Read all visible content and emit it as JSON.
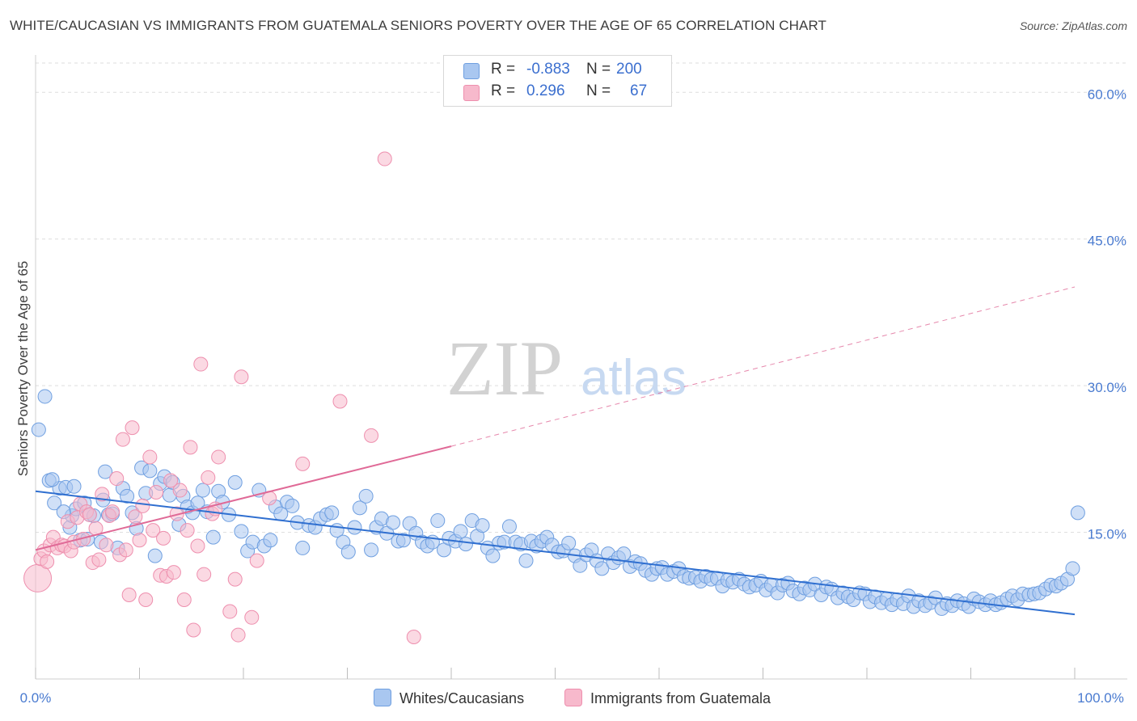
{
  "title": "WHITE/CAUCASIAN VS IMMIGRANTS FROM GUATEMALA SENIORS POVERTY OVER THE AGE OF 65 CORRELATION CHART",
  "source": "Source: ZipAtlas.com",
  "watermark": {
    "zip": "ZIP",
    "atlas": "atlas"
  },
  "legend": {
    "rows": [
      {
        "r_label": "R =",
        "r_value": "-0.883",
        "n_label": "N =",
        "n_value": "200"
      },
      {
        "r_label": "R =",
        "r_value": "0.296",
        "n_label": "N =",
        "n_value": "67"
      }
    ]
  },
  "bottom_legend": {
    "series1": "Whites/Caucasians",
    "series2": "Immigrants from Guatemala"
  },
  "colors": {
    "series1_fill": "#a9c7f0",
    "series1_stroke": "#6f9fe0",
    "series1_line": "#2f6fd0",
    "series2_fill": "#f7b9cc",
    "series2_stroke": "#ee8fae",
    "series2_line": "#e06a97",
    "axis_label": "#4a7bd0",
    "grid": "#dddddd"
  },
  "chart_data": {
    "type": "scatter",
    "title": "WHITE/CAUCASIAN VS IMMIGRANTS FROM GUATEMALA SENIORS POVERTY OVER THE AGE OF 65 CORRELATION CHART",
    "xlabel": "",
    "ylabel": "Seniors Poverty Over the Age of 65",
    "xlim": [
      0,
      100
    ],
    "ylim": [
      0,
      63
    ],
    "x_tick_labels": [
      "0.0%",
      "100.0%"
    ],
    "y_ticks": [
      15,
      30,
      45,
      60
    ],
    "y_tick_labels": [
      "15.0%",
      "30.0%",
      "45.0%",
      "60.0%"
    ],
    "grid": "horizontal dashed",
    "legend_position": "top-center",
    "series": [
      {
        "name": "Whites/Caucasians",
        "trend": {
          "x": [
            0,
            100
          ],
          "y": [
            19.2,
            6.6
          ],
          "style": "solid"
        },
        "points": [
          [
            0.3,
            25.5
          ],
          [
            0.9,
            28.9
          ],
          [
            1.3,
            20.3
          ],
          [
            1.8,
            18.0
          ],
          [
            2.3,
            19.5
          ],
          [
            2.9,
            19.6
          ],
          [
            3.3,
            15.5
          ],
          [
            3.5,
            16.7
          ],
          [
            3.9,
            17.4
          ],
          [
            4.3,
            14.2
          ],
          [
            4.7,
            18.0
          ],
          [
            5.2,
            16.8
          ],
          [
            5.6,
            16.7
          ],
          [
            6.3,
            14.0
          ],
          [
            6.7,
            21.2
          ],
          [
            7.0,
            16.8
          ],
          [
            7.4,
            16.9
          ],
          [
            7.9,
            13.4
          ],
          [
            8.4,
            19.5
          ],
          [
            8.8,
            18.7
          ],
          [
            9.3,
            17.0
          ],
          [
            9.7,
            15.4
          ],
          [
            10.2,
            21.6
          ],
          [
            10.6,
            19.0
          ],
          [
            11.0,
            21.3
          ],
          [
            11.5,
            12.6
          ],
          [
            12.0,
            20.0
          ],
          [
            12.4,
            20.7
          ],
          [
            12.9,
            18.8
          ],
          [
            13.2,
            20.1
          ],
          [
            13.8,
            15.8
          ],
          [
            14.2,
            18.7
          ],
          [
            14.6,
            17.6
          ],
          [
            15.1,
            17.0
          ],
          [
            15.6,
            18.0
          ],
          [
            16.1,
            19.3
          ],
          [
            16.5,
            17.1
          ],
          [
            17.1,
            14.5
          ],
          [
            17.6,
            19.2
          ],
          [
            18.0,
            18.1
          ],
          [
            18.6,
            16.8
          ],
          [
            19.2,
            20.1
          ],
          [
            19.8,
            15.1
          ],
          [
            20.4,
            13.1
          ],
          [
            20.9,
            14.0
          ],
          [
            21.5,
            19.3
          ],
          [
            22.0,
            13.6
          ],
          [
            22.6,
            14.2
          ],
          [
            23.1,
            17.6
          ],
          [
            23.6,
            16.9
          ],
          [
            24.2,
            18.1
          ],
          [
            24.7,
            17.7
          ],
          [
            25.2,
            16.0
          ],
          [
            25.7,
            13.4
          ],
          [
            26.3,
            15.7
          ],
          [
            26.9,
            15.5
          ],
          [
            27.4,
            16.4
          ],
          [
            28.0,
            16.8
          ],
          [
            28.5,
            17.0
          ],
          [
            29.0,
            15.2
          ],
          [
            29.6,
            14.0
          ],
          [
            30.1,
            13.0
          ],
          [
            30.7,
            15.5
          ],
          [
            31.2,
            17.5
          ],
          [
            31.8,
            18.7
          ],
          [
            32.3,
            13.2
          ],
          [
            32.8,
            15.5
          ],
          [
            33.3,
            16.4
          ],
          [
            33.8,
            14.9
          ],
          [
            34.4,
            16.0
          ],
          [
            34.9,
            14.1
          ],
          [
            35.4,
            14.2
          ],
          [
            36.0,
            15.9
          ],
          [
            36.6,
            14.9
          ],
          [
            37.2,
            14.0
          ],
          [
            37.7,
            13.6
          ],
          [
            38.2,
            14.0
          ],
          [
            38.7,
            16.2
          ],
          [
            39.3,
            13.2
          ],
          [
            39.8,
            14.4
          ],
          [
            40.4,
            14.1
          ],
          [
            40.9,
            15.1
          ],
          [
            41.4,
            13.8
          ],
          [
            42.0,
            16.2
          ],
          [
            42.5,
            14.6
          ],
          [
            43.0,
            15.7
          ],
          [
            43.5,
            13.4
          ],
          [
            44.0,
            12.6
          ],
          [
            44.6,
            13.9
          ],
          [
            45.1,
            14.0
          ],
          [
            45.6,
            15.6
          ],
          [
            46.2,
            14.0
          ],
          [
            46.7,
            13.8
          ],
          [
            47.2,
            12.1
          ],
          [
            47.7,
            14.1
          ],
          [
            48.2,
            13.6
          ],
          [
            48.7,
            14.1
          ],
          [
            49.2,
            14.5
          ],
          [
            49.7,
            13.7
          ],
          [
            50.3,
            13.0
          ],
          [
            50.8,
            13.1
          ],
          [
            51.3,
            13.9
          ],
          [
            51.9,
            12.6
          ],
          [
            52.4,
            11.6
          ],
          [
            53.0,
            12.7
          ],
          [
            53.5,
            13.2
          ],
          [
            54.0,
            12.1
          ],
          [
            54.5,
            11.3
          ],
          [
            55.1,
            12.8
          ],
          [
            55.6,
            11.9
          ],
          [
            56.1,
            12.4
          ],
          [
            56.6,
            12.8
          ],
          [
            57.2,
            11.5
          ],
          [
            57.7,
            12.0
          ],
          [
            58.2,
            11.8
          ],
          [
            58.7,
            11.1
          ],
          [
            59.3,
            10.7
          ],
          [
            59.8,
            11.3
          ],
          [
            60.3,
            11.4
          ],
          [
            60.8,
            10.7
          ],
          [
            61.4,
            11.0
          ],
          [
            61.9,
            11.3
          ],
          [
            62.4,
            10.5
          ],
          [
            62.9,
            10.3
          ],
          [
            63.5,
            10.4
          ],
          [
            64.0,
            10.0
          ],
          [
            64.5,
            10.5
          ],
          [
            65.0,
            10.2
          ],
          [
            65.6,
            10.3
          ],
          [
            66.1,
            9.5
          ],
          [
            66.6,
            10.1
          ],
          [
            67.1,
            9.9
          ],
          [
            67.7,
            10.2
          ],
          [
            68.2,
            9.7
          ],
          [
            68.7,
            9.4
          ],
          [
            69.3,
            9.6
          ],
          [
            69.8,
            10.0
          ],
          [
            70.3,
            9.1
          ],
          [
            70.8,
            9.6
          ],
          [
            71.4,
            8.8
          ],
          [
            71.9,
            9.6
          ],
          [
            72.4,
            9.8
          ],
          [
            72.9,
            9.0
          ],
          [
            73.5,
            8.7
          ],
          [
            74.0,
            9.3
          ],
          [
            74.5,
            9.1
          ],
          [
            75.0,
            9.7
          ],
          [
            75.6,
            8.6
          ],
          [
            76.1,
            9.4
          ],
          [
            76.6,
            9.2
          ],
          [
            77.2,
            8.3
          ],
          [
            77.7,
            8.8
          ],
          [
            78.2,
            8.4
          ],
          [
            78.7,
            8.1
          ],
          [
            79.3,
            8.8
          ],
          [
            79.8,
            8.7
          ],
          [
            80.3,
            7.9
          ],
          [
            80.8,
            8.4
          ],
          [
            81.4,
            7.8
          ],
          [
            81.9,
            8.2
          ],
          [
            82.4,
            7.6
          ],
          [
            82.9,
            8.1
          ],
          [
            83.5,
            7.7
          ],
          [
            84.0,
            8.5
          ],
          [
            84.5,
            7.4
          ],
          [
            85.0,
            8.0
          ],
          [
            85.6,
            7.5
          ],
          [
            86.1,
            7.8
          ],
          [
            86.6,
            8.3
          ],
          [
            87.2,
            7.2
          ],
          [
            87.7,
            7.7
          ],
          [
            88.2,
            7.5
          ],
          [
            88.7,
            8.0
          ],
          [
            89.3,
            7.7
          ],
          [
            89.8,
            7.4
          ],
          [
            90.3,
            8.2
          ],
          [
            90.8,
            7.9
          ],
          [
            91.4,
            7.6
          ],
          [
            91.9,
            8.0
          ],
          [
            92.4,
            7.6
          ],
          [
            92.9,
            7.8
          ],
          [
            93.5,
            8.2
          ],
          [
            94.0,
            8.5
          ],
          [
            94.5,
            8.1
          ],
          [
            95.0,
            8.7
          ],
          [
            95.6,
            8.6
          ],
          [
            96.1,
            8.7
          ],
          [
            96.6,
            8.8
          ],
          [
            97.2,
            9.2
          ],
          [
            97.7,
            9.6
          ],
          [
            98.2,
            9.5
          ],
          [
            98.7,
            9.8
          ],
          [
            99.3,
            10.2
          ],
          [
            99.8,
            11.3
          ],
          [
            100.3,
            17.0
          ],
          [
            1.6,
            20.4
          ],
          [
            2.7,
            17.1
          ],
          [
            3.7,
            19.7
          ],
          [
            5.0,
            14.3
          ],
          [
            6.5,
            18.3
          ]
        ]
      },
      {
        "name": "Immigrants from Guatemala",
        "trend": {
          "x": [
            0,
            40,
            100
          ],
          "y": [
            13.2,
            23.8,
            40.1
          ],
          "style": "solid-then-dashed",
          "solid_until_x": 40
        },
        "points": [
          [
            0.2,
            10.3
          ],
          [
            0.5,
            12.3
          ],
          [
            0.8,
            13.1
          ],
          [
            1.1,
            12.0
          ],
          [
            1.4,
            13.7
          ],
          [
            1.7,
            14.5
          ],
          [
            2.1,
            13.4
          ],
          [
            2.5,
            13.7
          ],
          [
            2.8,
            13.6
          ],
          [
            3.1,
            16.1
          ],
          [
            3.4,
            13.1
          ],
          [
            3.7,
            14.0
          ],
          [
            4.0,
            16.5
          ],
          [
            4.3,
            17.9
          ],
          [
            4.6,
            14.3
          ],
          [
            4.9,
            17.1
          ],
          [
            5.2,
            16.8
          ],
          [
            5.5,
            11.9
          ],
          [
            5.8,
            15.4
          ],
          [
            6.1,
            12.2
          ],
          [
            6.4,
            18.9
          ],
          [
            6.8,
            13.7
          ],
          [
            7.1,
            16.7
          ],
          [
            7.4,
            17.1
          ],
          [
            7.8,
            20.5
          ],
          [
            8.1,
            12.7
          ],
          [
            8.4,
            24.5
          ],
          [
            8.7,
            13.2
          ],
          [
            9.0,
            8.6
          ],
          [
            9.3,
            25.7
          ],
          [
            9.6,
            16.6
          ],
          [
            10.0,
            14.2
          ],
          [
            10.3,
            17.7
          ],
          [
            10.6,
            8.1
          ],
          [
            11.0,
            22.7
          ],
          [
            11.3,
            15.2
          ],
          [
            11.6,
            19.1
          ],
          [
            12.0,
            10.6
          ],
          [
            12.3,
            14.4
          ],
          [
            12.6,
            10.5
          ],
          [
            13.0,
            20.3
          ],
          [
            13.3,
            10.9
          ],
          [
            13.6,
            16.9
          ],
          [
            13.9,
            19.3
          ],
          [
            14.3,
            8.1
          ],
          [
            14.6,
            15.2
          ],
          [
            14.9,
            23.7
          ],
          [
            15.2,
            5.0
          ],
          [
            15.6,
            13.6
          ],
          [
            15.9,
            32.2
          ],
          [
            16.2,
            10.7
          ],
          [
            16.6,
            20.6
          ],
          [
            17.0,
            16.9
          ],
          [
            17.3,
            17.4
          ],
          [
            17.6,
            22.7
          ],
          [
            18.7,
            6.9
          ],
          [
            19.2,
            10.2
          ],
          [
            19.5,
            4.5
          ],
          [
            19.8,
            30.9
          ],
          [
            20.8,
            6.3
          ],
          [
            21.3,
            12.1
          ],
          [
            22.5,
            18.5
          ],
          [
            25.7,
            22.0
          ],
          [
            29.3,
            28.4
          ],
          [
            32.3,
            24.9
          ],
          [
            33.6,
            53.2
          ],
          [
            36.4,
            4.3
          ]
        ]
      }
    ]
  }
}
